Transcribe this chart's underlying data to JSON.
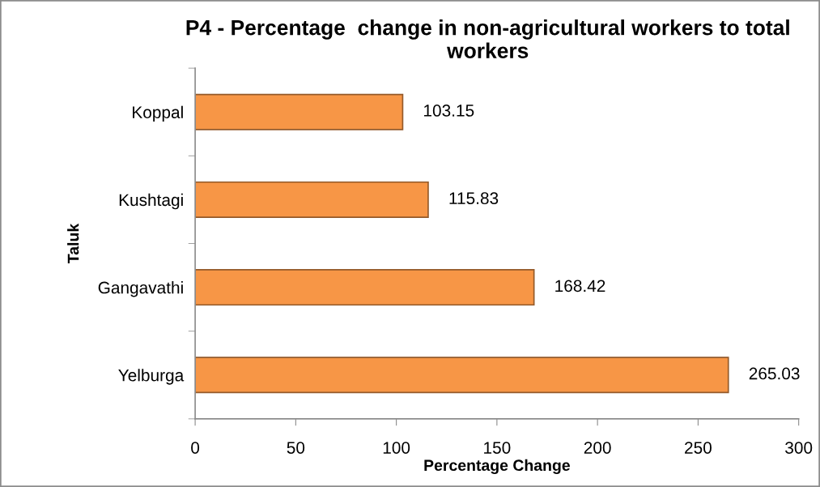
{
  "chart_data": {
    "type": "bar",
    "orientation": "horizontal",
    "title": "P4 - Percentage  change in non-agricultural workers to total workers",
    "xlabel": "Percentage Change",
    "ylabel": "Taluk",
    "categories": [
      "Koppal",
      "Kushtagi",
      "Gangavathi",
      "Yelburga"
    ],
    "values": [
      103.15,
      115.83,
      168.42,
      265.03
    ],
    "color": "#f79646",
    "xlim": [
      0,
      300
    ],
    "xticks": [
      0,
      50,
      100,
      150,
      200,
      250,
      300
    ],
    "data_labels": true
  }
}
